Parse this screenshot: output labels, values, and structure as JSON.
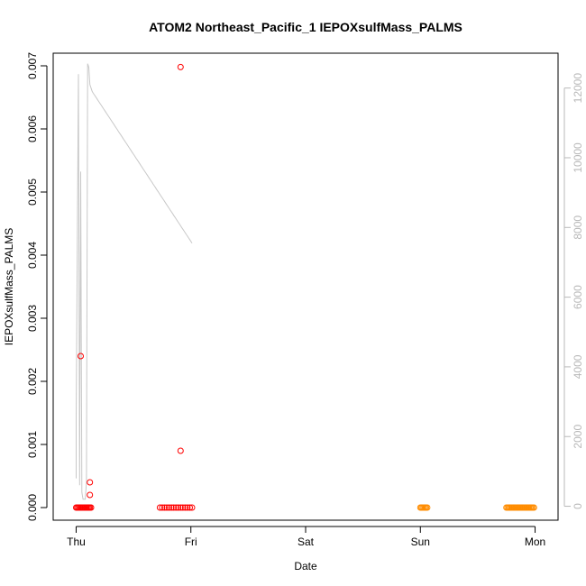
{
  "chart_data": {
    "type": "scatter",
    "title": "ATOM2 Northeast_Pacific_1 IEPOXsulfMass_PALMS",
    "xlabel": "Date",
    "ylabel": "IEPOXsulfMass_PALMS",
    "x_ticks": [
      {
        "label": "Thu",
        "value": 0
      },
      {
        "label": "Fri",
        "value": 1
      },
      {
        "label": "Sat",
        "value": 2
      },
      {
        "label": "Sun",
        "value": 3
      },
      {
        "label": "Mon",
        "value": 4
      }
    ],
    "xlim": [
      -0.2,
      4.2
    ],
    "ylim": [
      -0.0002,
      0.0072
    ],
    "yticks": [
      0.0,
      0.001,
      0.002,
      0.003,
      0.004,
      0.005,
      0.006,
      0.007
    ],
    "ytick_labels": [
      "0.000",
      "0.001",
      "0.002",
      "0.003",
      "0.004",
      "0.005",
      "0.006",
      "0.007"
    ],
    "y2lim": [
      -400,
      13000
    ],
    "y2ticks": [
      0,
      2000,
      4000,
      6000,
      8000,
      10000,
      12000
    ],
    "y2tick_labels": [
      "0",
      "2000",
      "4000",
      "6000",
      "8000",
      "10000",
      "12000"
    ],
    "grid": false,
    "colors": {
      "points_thu_fri": "#ff0000",
      "points_sun_mon": "#ff8c00",
      "background_line": "#c8c8c8"
    },
    "series": [
      {
        "axis": "left",
        "color": "#ff0000",
        "x": [
          0.0,
          0.01,
          0.02,
          0.03,
          0.04,
          0.05,
          0.06,
          0.07,
          0.08,
          0.09,
          0.1,
          0.11,
          0.12,
          0.13,
          0.04,
          0.12,
          0.12,
          0.1,
          0.73,
          0.75,
          0.77,
          0.79,
          0.81,
          0.83,
          0.85,
          0.87,
          0.89,
          0.91,
          0.93,
          0.95,
          0.97,
          0.99,
          1.01,
          0.91,
          0.91
        ],
        "y": [
          0.0,
          0.0,
          0.0,
          0.0,
          0.0,
          0.0,
          0.0,
          0.0,
          0.0,
          0.0,
          0.0,
          0.0,
          0.0,
          0.0,
          0.0024,
          0.0004,
          0.0002,
          0.0,
          0.0,
          0.0,
          0.0,
          0.0,
          0.0,
          0.0,
          0.0,
          0.0,
          0.0,
          0.0,
          0.0,
          0.0,
          0.0,
          0.0,
          0.0,
          0.00698,
          0.0009
        ]
      },
      {
        "axis": "left",
        "color": "#ff8c00",
        "x": [
          3.0,
          3.01,
          3.02,
          3.03,
          3.04,
          3.05,
          3.06,
          3.75,
          3.76,
          3.77,
          3.78,
          3.79,
          3.8,
          3.81,
          3.82,
          3.83,
          3.84,
          3.85,
          3.86,
          3.87,
          3.88,
          3.89,
          3.9,
          3.91,
          3.92,
          3.93,
          3.94,
          3.95,
          3.96,
          3.97,
          3.98,
          3.99
        ],
        "y": [
          0.0,
          0.0,
          0.0,
          0.0,
          0.0,
          0.0,
          0.0,
          0.0,
          0.0,
          0.0,
          0.0,
          0.0,
          0.0,
          0.0,
          0.0,
          0.0,
          0.0,
          0.0,
          0.0,
          0.0,
          0.0,
          0.0,
          0.0,
          0.0,
          0.0,
          0.0,
          0.0,
          0.0,
          0.0,
          0.0,
          0.0,
          0.0
        ]
      },
      {
        "axis": "right",
        "color": "#c8c8c8",
        "segments": [
          {
            "x": [
              0.0,
              0.0,
              0.02,
              0.03,
              0.04,
              0.05,
              0.06,
              0.07,
              0.08,
              0.09,
              0.1,
              0.11,
              0.12,
              0.13,
              0.14,
              0.15,
              0.16,
              0.17,
              0.18,
              0.19,
              0.2,
              0.21,
              0.22,
              0.23,
              0.24,
              0.25,
              0.26,
              0.27,
              0.28,
              0.29,
              0.3,
              0.31,
              0.32,
              0.33,
              0.34,
              0.35,
              0.36,
              0.37,
              0.38,
              0.39,
              0.4,
              0.41,
              0.42,
              0.43,
              0.44,
              0.45,
              0.46,
              0.47,
              0.48,
              0.49,
              0.5,
              0.51,
              0.52,
              0.53,
              0.54,
              0.55,
              0.56,
              0.57,
              0.58,
              0.59,
              0.6,
              0.61,
              0.62,
              0.63,
              0.64,
              0.65,
              0.66,
              0.67,
              0.68,
              0.69,
              0.7,
              0.71,
              0.72,
              0.73,
              0.74,
              0.75,
              0.76,
              0.77,
              0.78,
              0.79,
              0.8,
              0.81,
              0.82,
              0.83,
              0.84,
              0.85,
              0.86,
              0.87,
              0.88,
              0.89,
              0.9,
              0.91,
              0.92,
              0.93,
              0.94,
              0.95,
              0.96,
              0.97,
              0.98,
              0.99,
              1.0,
              1.01
            ],
            "y": [
              800,
              2600,
              12400,
              600,
              9600,
              400,
              200,
              200,
              200,
              700,
              12700,
              12600,
              12100,
              12000,
              11900,
              11850,
              11800,
              11750,
              11700,
              11650,
              11600,
              11550,
              11500,
              11450,
              11400,
              11350,
              11300,
              11250,
              11200,
              11150,
              11100,
              11050,
              11000,
              10950,
              10900,
              10850,
              10800,
              10750,
              10700,
              10650,
              10600,
              10550,
              10500,
              10450,
              10400,
              10350,
              10300,
              10250,
              10200,
              10150,
              10100,
              10050,
              10000,
              9950,
              9900,
              9850,
              9800,
              9750,
              9700,
              9650,
              9600,
              9550,
              9500,
              9450,
              9400,
              9350,
              9300,
              9250,
              9200,
              9150,
              9100,
              9050,
              9000,
              8950,
              8900,
              8850,
              8800,
              8750,
              8700,
              8650,
              8600,
              8550,
              8500,
              8450,
              8400,
              8350,
              8300,
              8250,
              8200,
              8150,
              8100,
              8050,
              8000,
              7950,
              7900,
              7850,
              7800,
              7750,
              7700,
              7650,
              7600,
              7550
            ]
          }
        ]
      }
    ]
  }
}
